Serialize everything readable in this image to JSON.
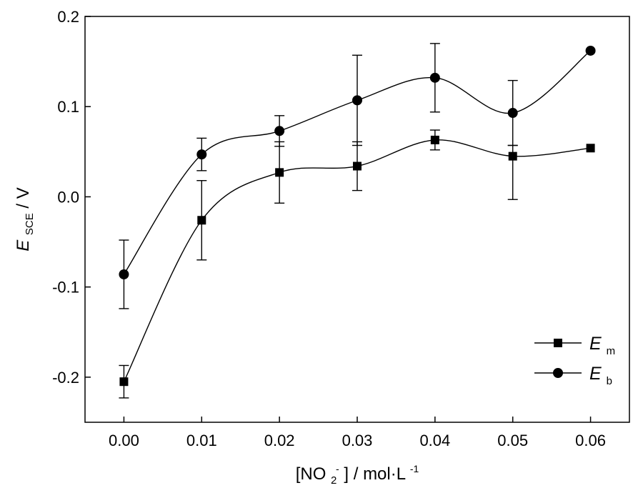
{
  "chart_data": {
    "type": "line",
    "x": [
      0.0,
      0.01,
      0.02,
      0.03,
      0.04,
      0.05,
      0.06
    ],
    "xlim": [
      -0.005,
      0.065
    ],
    "ylim": [
      -0.25,
      0.2
    ],
    "xticks": [
      0.0,
      0.01,
      0.02,
      0.03,
      0.04,
      0.05,
      0.06
    ],
    "yticks": [
      -0.2,
      -0.1,
      0.0,
      0.1,
      0.2
    ],
    "xtick_labels": [
      "0.00",
      "0.01",
      "0.02",
      "0.03",
      "0.04",
      "0.05",
      "0.06"
    ],
    "ytick_labels": [
      "-0.2",
      "-0.1",
      "0.0",
      "0.1",
      "0.2"
    ],
    "xlabel": {
      "open": "[NO",
      "sub": "2",
      "sup": "-",
      "mid": "] / mol·L",
      "exp": "-1"
    },
    "ylabel": {
      "main": "E",
      "sub": "SCE",
      "unit": " / V"
    },
    "grid": false,
    "legend_position": "bottom-right",
    "series": [
      {
        "legend_main": "E",
        "legend_sub": "m",
        "marker": "square",
        "values": [
          -0.205,
          -0.026,
          0.027,
          0.034,
          0.063,
          0.045,
          0.054
        ],
        "error_low": [
          0.018,
          0.044,
          0.034,
          0.027,
          0.011,
          0.048,
          0.0
        ],
        "error_high": [
          0.018,
          0.044,
          0.034,
          0.027,
          0.011,
          0.012,
          0.0
        ]
      },
      {
        "legend_main": "E",
        "legend_sub": "b",
        "marker": "circle",
        "values": [
          -0.086,
          0.047,
          0.073,
          0.107,
          0.132,
          0.093,
          0.162
        ],
        "error_low": [
          0.038,
          0.018,
          0.017,
          0.05,
          0.038,
          0.036,
          0.0
        ],
        "error_high": [
          0.038,
          0.018,
          0.017,
          0.05,
          0.038,
          0.036,
          0.0
        ]
      }
    ]
  }
}
